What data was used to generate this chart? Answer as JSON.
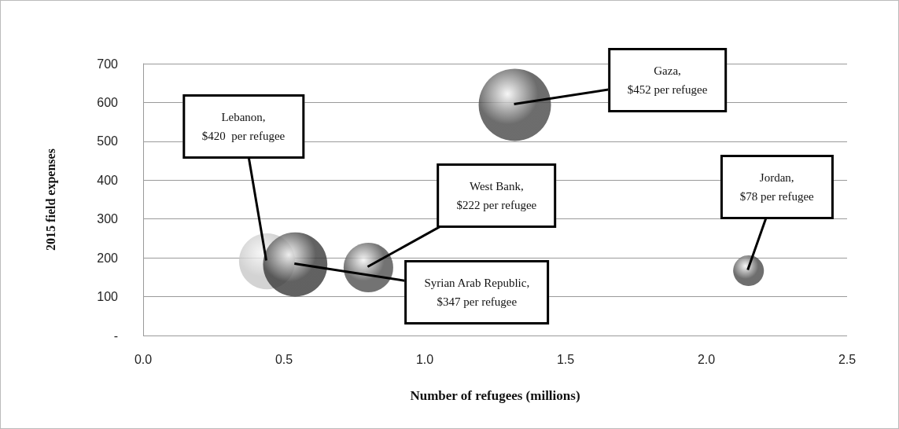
{
  "chart_data": {
    "type": "bubble",
    "xlabel": "Number of refugees (millions)",
    "ylabel": "2015 field expenses",
    "x": [
      0.44,
      0.54,
      0.8,
      1.32,
      2.15
    ],
    "values": [
      191,
      183,
      175,
      594,
      167
    ],
    "sizes": [
      0.6,
      0.79,
      0.47,
      1,
      0.18
    ],
    "colors": [
      "#c8c8c8",
      "#3a3a3a",
      "#505050",
      "#484848",
      "#4a4a4a"
    ],
    "xlim": [
      0,
      2.5
    ],
    "xticks": [
      {
        "value": 0,
        "label": "0.0"
      },
      0.5,
      {
        "value": 1,
        "label": "1.0"
      },
      1.5,
      {
        "value": 2,
        "label": "2.0"
      },
      2.5
    ],
    "ylim": [
      0,
      700
    ],
    "yticks": [
      {
        "value": 0,
        "label": "-"
      },
      100,
      200,
      300,
      400,
      500,
      600,
      700
    ],
    "grid": "y",
    "annotations": [
      {
        "text": "Lebanon,\n$420  per refugee",
        "x": 0.44,
        "y": 191
      },
      {
        "text": "Syrian Arab Republic,\n$347 per refugee",
        "x": 0.54,
        "y": 183
      },
      {
        "text": "West Bank,\n$222 per refugee",
        "x": 0.8,
        "y": 175
      },
      {
        "text": "Gaza,\n$452 per refugee",
        "x": 1.32,
        "y": 594
      },
      {
        "text": "Jordan,\n$78 per refugee",
        "x": 2.15,
        "y": 167
      }
    ]
  }
}
